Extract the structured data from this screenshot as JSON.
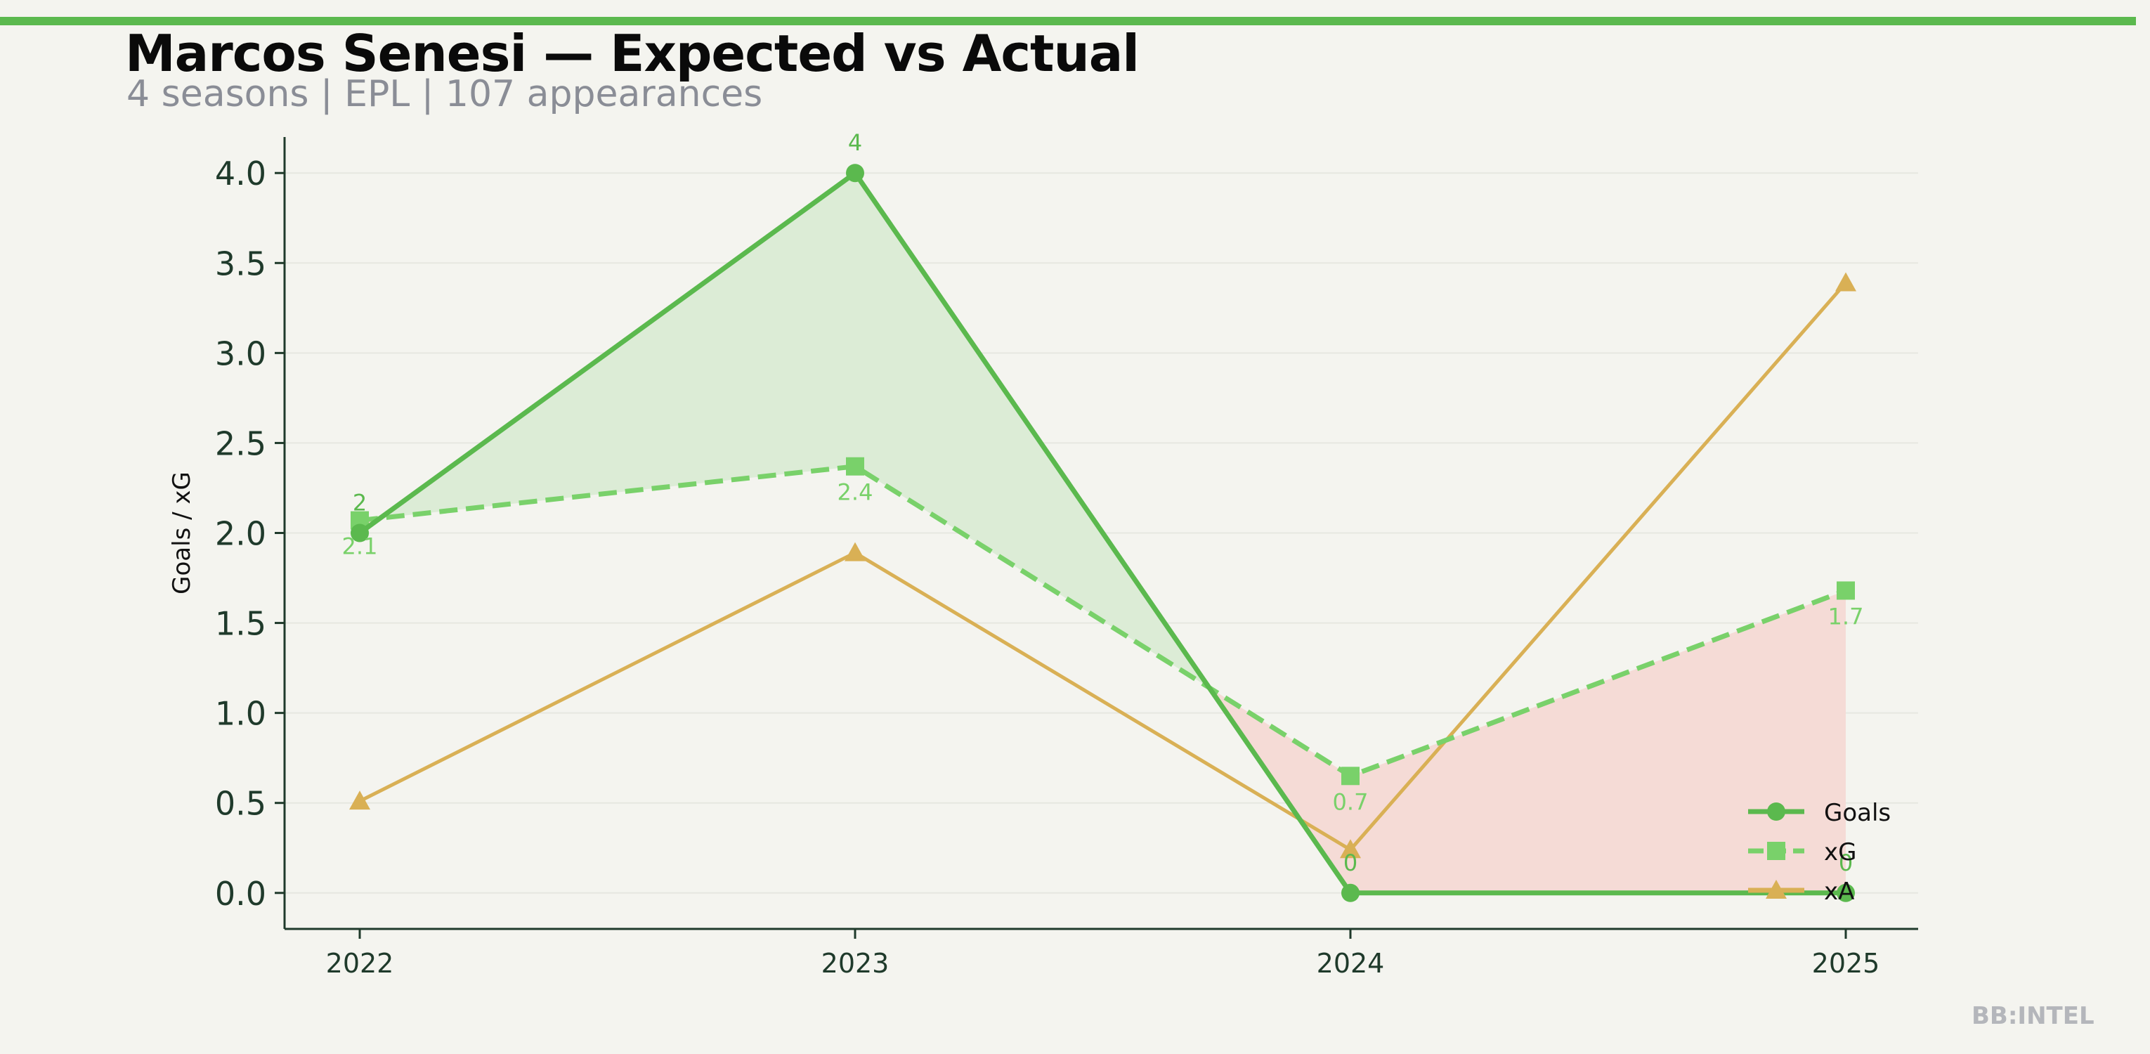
{
  "header": {
    "title": "Marcos Senesi — Expected vs Actual",
    "subtitle": "4 seasons | EPL | 107 appearances"
  },
  "watermark": "BB:INTEL",
  "colors": {
    "background": "#f4f4ef",
    "accent": "#5bb94e",
    "goals": "#5bb94e",
    "xg": "#79d16a",
    "xa": "#d9b055",
    "overperformance_fill": "#dcecd6",
    "underperformance_fill": "#f5dbd6"
  },
  "chart_data": {
    "type": "line",
    "x": [
      "2022",
      "2023",
      "2024",
      "2025"
    ],
    "ylabel": "Goals / xG",
    "xlabel": "",
    "ylim": [
      -0.2,
      4.2
    ],
    "yticks": [
      "0.0",
      "0.5",
      "1.0",
      "1.5",
      "2.0",
      "2.5",
      "3.0",
      "3.5",
      "4.0"
    ],
    "grid": "horizontal",
    "legend_position": "bottom-right",
    "series": [
      {
        "name": "Goals",
        "values": [
          2,
          4,
          0,
          0
        ],
        "labels": [
          "2",
          "4",
          "0",
          "0"
        ],
        "marker": "circle",
        "style": "solid",
        "color": "#5bb94e"
      },
      {
        "name": "xG",
        "values": [
          2.07,
          2.37,
          0.65,
          1.68
        ],
        "labels": [
          "2.1",
          "2.4",
          "0.7",
          "1.7"
        ],
        "marker": "square",
        "style": "dashed",
        "color": "#79d16a"
      },
      {
        "name": "xA",
        "values": [
          0.51,
          1.89,
          0.24,
          3.39
        ],
        "labels": [],
        "marker": "triangle",
        "style": "solid",
        "color": "#d9b055"
      }
    ]
  }
}
